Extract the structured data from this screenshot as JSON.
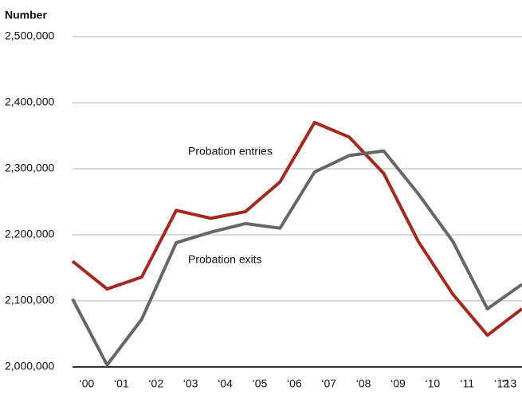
{
  "chart_data": {
    "type": "line",
    "y_axis_label": "Number",
    "categories": [
      "‘00",
      "‘01",
      "‘02",
      "‘03",
      "‘04",
      "‘05",
      "‘06",
      "‘07",
      "‘08",
      "‘09",
      "‘10",
      "‘11",
      "‘12",
      "‘13"
    ],
    "series": [
      {
        "name": "Probation entries",
        "color": "#a3281e",
        "values": [
          2160000,
          2118000,
          2136000,
          2237000,
          2225000,
          2235000,
          2280000,
          2370000,
          2348000,
          2293000,
          2190000,
          2110000,
          2048000,
          2088000
        ]
      },
      {
        "name": "Probation exits",
        "color": "#666666",
        "values": [
          2103000,
          2003000,
          2072000,
          2188000,
          2204000,
          2217000,
          2210000,
          2295000,
          2320000,
          2327000,
          2262000,
          2190000,
          2088000,
          2125000
        ]
      }
    ],
    "ylim": [
      2000000,
      2500000
    ],
    "yticks": [
      {
        "value": 2000000,
        "label": "2,000,000"
      },
      {
        "value": 2100000,
        "label": "2,100,000"
      },
      {
        "value": 2200000,
        "label": "2,200,000"
      },
      {
        "value": 2300000,
        "label": "2,300,000"
      },
      {
        "value": 2400000,
        "label": "2,400,000"
      },
      {
        "value": 2500000,
        "label": "2,500,000"
      }
    ],
    "grid": true
  }
}
